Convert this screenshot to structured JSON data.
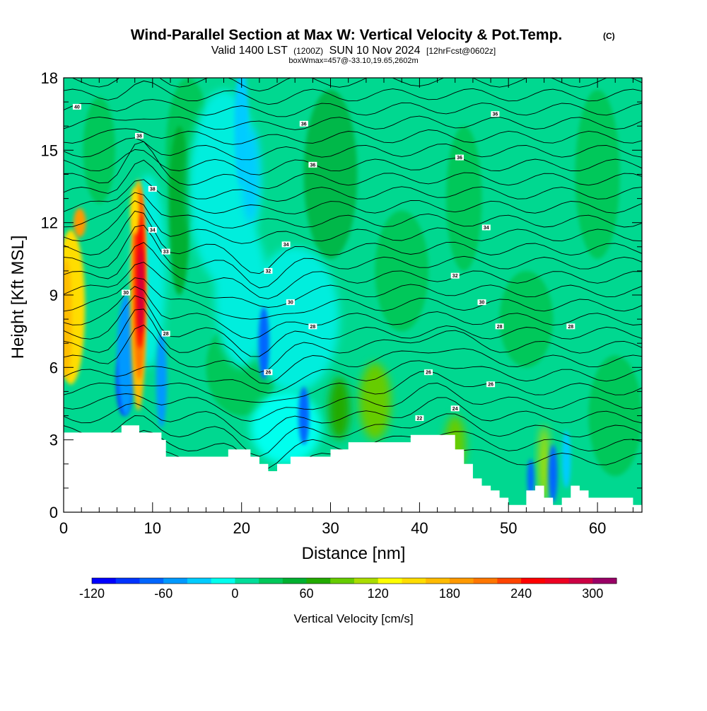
{
  "chart_data": {
    "type": "heatmap",
    "title": "Wind-Parallel Section at Max W: Vertical Velocity & Pot.Temp.",
    "title_badge": "(C)",
    "subtitle_main": "Valid 1400 LST",
    "subtitle_small1": "(1200Z)",
    "subtitle_date": "SUN 10 Nov 2024",
    "subtitle_small2": "[12hrFcst@0602z]",
    "subtitle2": "boxWmax=457@-33.10,19.65,2602m",
    "xlabel": "Distance [nm]",
    "ylabel": "Height [Kft MSL]",
    "xlim": [
      0,
      65
    ],
    "ylim": [
      0,
      18
    ],
    "x_ticks": [
      "0",
      "10",
      "20",
      "30",
      "40",
      "50",
      "60"
    ],
    "y_ticks": [
      "0",
      "3",
      "6",
      "9",
      "12",
      "15",
      "18"
    ],
    "colorbar": {
      "title": "Vertical Velocity [cm/s]",
      "labels": [
        "-120",
        "-60",
        "0",
        "60",
        "120",
        "180",
        "240",
        "300"
      ],
      "colors": [
        "#0000ff",
        "#0033ff",
        "#0066ff",
        "#0099ff",
        "#00ccff",
        "#00ffee",
        "#00dd99",
        "#00c85a",
        "#00b030",
        "#22aa00",
        "#66cc00",
        "#aadd00",
        "#ffff00",
        "#ffdd00",
        "#ffbb00",
        "#ff9900",
        "#ff7700",
        "#ff4400",
        "#ff0000",
        "#ee0022",
        "#cc0044",
        "#990066"
      ]
    },
    "theta_labels": [
      "40",
      "38",
      "36",
      "36",
      "38",
      "36",
      "36",
      "34",
      "34",
      "34",
      "33",
      "32",
      "32",
      "30",
      "30",
      "30",
      "28",
      "28",
      "28",
      "28",
      "26",
      "26",
      "26",
      "24",
      "22"
    ],
    "terrain_heights_kft": [
      [
        0,
        3.3
      ],
      [
        3,
        3.3
      ],
      [
        6.5,
        3.6
      ],
      [
        8.5,
        3.3
      ],
      [
        11,
        3.0
      ],
      [
        11.5,
        2.3
      ],
      [
        14,
        2.3
      ],
      [
        18,
        2.3
      ],
      [
        18.5,
        2.6
      ],
      [
        20,
        2.6
      ],
      [
        21,
        2.3
      ],
      [
        22,
        2.0
      ],
      [
        23,
        1.7
      ],
      [
        24,
        2.0
      ],
      [
        25.5,
        2.3
      ],
      [
        28,
        2.3
      ],
      [
        30,
        2.6
      ],
      [
        32,
        2.9
      ],
      [
        35,
        2.9
      ],
      [
        38,
        2.9
      ],
      [
        39,
        3.2
      ],
      [
        43,
        3.2
      ],
      [
        44,
        2.6
      ],
      [
        45,
        2.0
      ],
      [
        46,
        1.4
      ],
      [
        47,
        1.1
      ],
      [
        48,
        0.9
      ],
      [
        49,
        0.6
      ],
      [
        50,
        0.3
      ],
      [
        51,
        0.3
      ],
      [
        52,
        0.9
      ],
      [
        53,
        1.1
      ],
      [
        54,
        0.6
      ],
      [
        55,
        0.3
      ],
      [
        56,
        0.6
      ],
      [
        57,
        1.1
      ],
      [
        58,
        0.9
      ],
      [
        59,
        0.6
      ],
      [
        61,
        0.6
      ],
      [
        63,
        0.6
      ],
      [
        64,
        0.3
      ],
      [
        65,
        0.3
      ]
    ]
  }
}
